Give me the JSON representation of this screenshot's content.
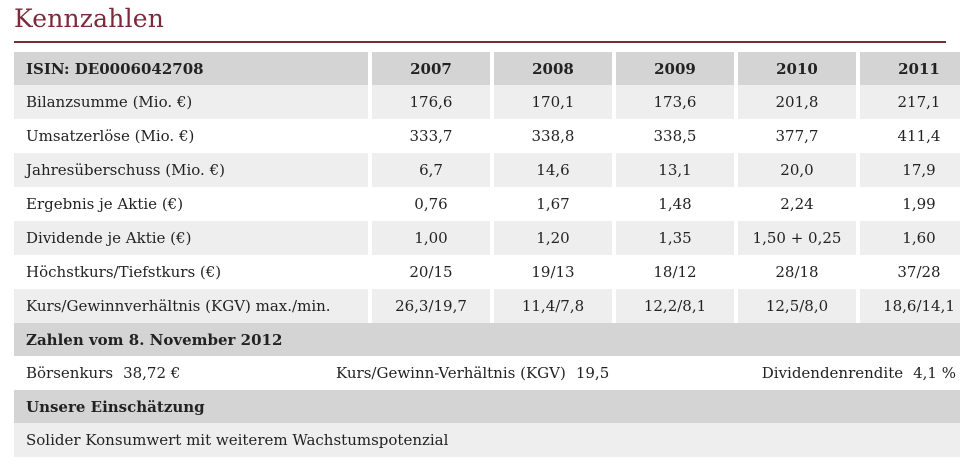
{
  "title": "Kennzahlen",
  "table": {
    "header": {
      "label": "ISIN: DE0006042708",
      "years": [
        "2007",
        "2008",
        "2009",
        "2010",
        "2011"
      ]
    },
    "rows": [
      {
        "label": "Bilanzsumme (Mio. €)",
        "values": [
          "176,6",
          "170,1",
          "173,6",
          "201,8",
          "217,1"
        ]
      },
      {
        "label": "Umsatzerlöse (Mio. €)",
        "values": [
          "333,7",
          "338,8",
          "338,5",
          "377,7",
          "411,4"
        ]
      },
      {
        "label": "Jahresüberschuss (Mio. €)",
        "values": [
          "6,7",
          "14,6",
          "13,1",
          "20,0",
          "17,9"
        ]
      },
      {
        "label": "Ergebnis je Aktie (€)",
        "values": [
          "0,76",
          "1,67",
          "1,48",
          "2,24",
          "1,99"
        ]
      },
      {
        "label": "Dividende je Aktie (€)",
        "values": [
          "1,00",
          "1,20",
          "1,35",
          "1,50 + 0,25",
          "1,60"
        ]
      },
      {
        "label": "Höchstkurs/Tiefstkurs (€)",
        "values": [
          "20/15",
          "19/13",
          "18/12",
          "28/18",
          "37/28"
        ]
      },
      {
        "label": "Kurs/Gewinnverhältnis (KGV) max./min.",
        "values": [
          "26,3/19,7",
          "11,4/7,8",
          "12,2/8,1",
          "12,5/8,0",
          "18,6/14,1"
        ]
      }
    ]
  },
  "zahlen": {
    "heading": "Zahlen vom 8. November 2012",
    "boersenkurs_label": "Börsenkurs",
    "boersenkurs_value": "38,72 €",
    "kgv_label": "Kurs/Gewinn-Verhältnis (KGV)",
    "kgv_value": "19,5",
    "dividendenrendite_label": "Dividendenrendite",
    "dividendenrendite_value": "4,1 %"
  },
  "einschaetzung": {
    "heading": "Unsere Einschätzung",
    "text": "Solider Konsumwert mit weiterem Wachstumspotenzial"
  }
}
